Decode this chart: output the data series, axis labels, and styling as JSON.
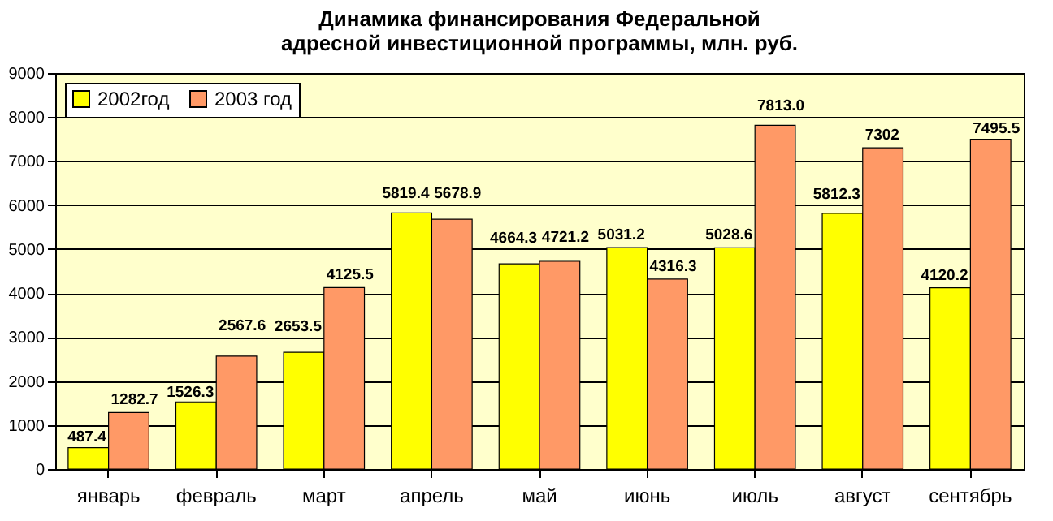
{
  "chart_data": {
    "type": "bar",
    "title": "Динамика финансирования Федеральной адресной инвестиционной программы, млн. руб.",
    "categories": [
      "январь",
      "февраль",
      "март",
      "апрель",
      "май",
      "июнь",
      "июль",
      "август",
      "сентябрь"
    ],
    "series": [
      {
        "name": "2002год",
        "color": "#ffff00",
        "values": [
          487.4,
          1526.3,
          2653.5,
          5819.4,
          4664.3,
          5031.2,
          5028.6,
          5812.3,
          4120.2
        ],
        "value_labels": [
          "487.4",
          "1526.3",
          "2653.5",
          "5819.4",
          "4664.3",
          "5031.2",
          "5028.6",
          "5812.3",
          "4120.2"
        ]
      },
      {
        "name": "2003 год",
        "color": "#ff9966",
        "values": [
          1282.7,
          2567.6,
          4125.5,
          5678.9,
          4721.2,
          4316.3,
          7813.0,
          7302,
          7495.5
        ],
        "value_labels": [
          "1282.7",
          "2567.6",
          "4125.5",
          "5678.9",
          "4721.2",
          "4316.3",
          "7813.0",
          "7302",
          "7495.5"
        ]
      }
    ],
    "ylim": [
      0,
      9000
    ],
    "yticks": [
      0,
      1000,
      2000,
      3000,
      4000,
      5000,
      6000,
      7000,
      8000,
      9000
    ],
    "grid": "y",
    "legend": "top left"
  }
}
